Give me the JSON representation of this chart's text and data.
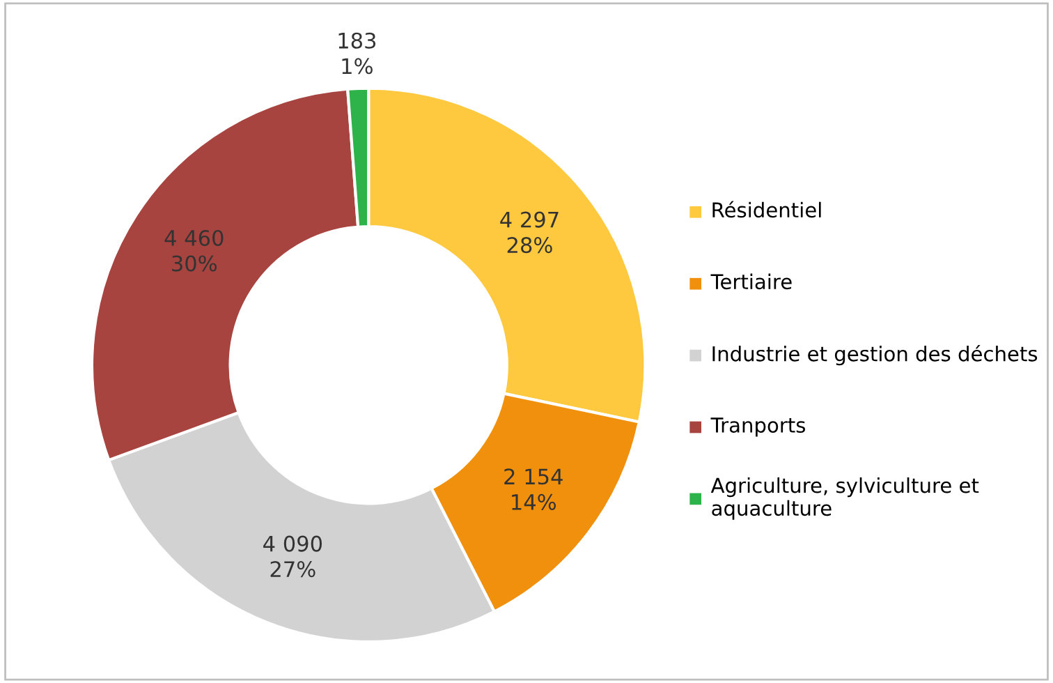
{
  "chart_data": {
    "type": "donut",
    "categories": [
      "Résidentiel",
      "Tertiaire",
      "Industrie et gestion des déchets",
      "Tranports",
      "Agriculture, sylviculture et aquaculture"
    ],
    "values": [
      4297,
      2154,
      4090,
      4460,
      183
    ],
    "colors": [
      "#fec93f",
      "#f0900c",
      "#d2d2d2",
      "#a8443f",
      "#2db34a"
    ],
    "value_labels": [
      "4 297\n28%",
      "2 154\n14%",
      "4 090\n27%",
      "4 460\n30%",
      "183\n1%"
    ],
    "legend": "right"
  }
}
